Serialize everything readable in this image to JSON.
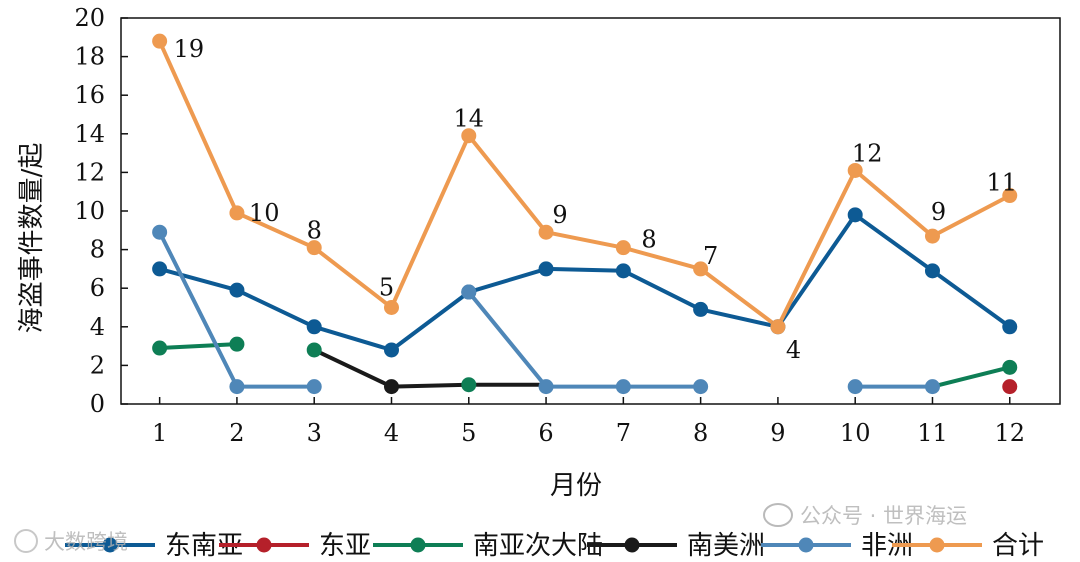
{
  "chart_data": {
    "type": "line",
    "xlabel": "月份",
    "ylabel": "海盗事件数量/起",
    "x": [
      1,
      2,
      3,
      4,
      5,
      6,
      7,
      8,
      9,
      10,
      11,
      12
    ],
    "xlim": [
      0.5,
      12.65
    ],
    "ylim": [
      0,
      20
    ],
    "yticks": [
      0,
      2,
      4,
      6,
      8,
      10,
      12,
      14,
      16,
      18,
      20
    ],
    "grid": false,
    "legend_position": "bottom",
    "series": [
      {
        "name": "东南亚",
        "color": "#0d5a94",
        "values": [
          7,
          5.9,
          4,
          2.8,
          5.8,
          7,
          6.9,
          4.9,
          4,
          9.8,
          6.9,
          4
        ]
      },
      {
        "name": "东亚",
        "color": "#b5202a",
        "values": [
          null,
          null,
          null,
          null,
          null,
          null,
          null,
          null,
          null,
          null,
          null,
          0.9
        ]
      },
      {
        "name": "南亚次大陆",
        "color": "#0e7e55",
        "values": [
          2.9,
          3.1,
          2.8,
          null,
          1,
          null,
          null,
          null,
          null,
          null,
          0.9,
          1.9
        ]
      },
      {
        "name": "南美洲",
        "color": "#1a1a1a",
        "values": [
          null,
          null,
          2.8,
          0.9,
          1,
          1,
          null,
          null,
          null,
          null,
          null,
          null
        ]
      },
      {
        "name": "非洲",
        "color": "#4f87b8",
        "values": [
          8.9,
          0.9,
          0.9,
          null,
          5.8,
          0.9,
          0.9,
          0.9,
          null,
          0.9,
          0.9,
          null
        ]
      },
      {
        "name": "合计",
        "color": "#ee9a50",
        "values": [
          18.8,
          9.9,
          8.1,
          5,
          13.9,
          8.9,
          8.1,
          7,
          4,
          12.1,
          8.7,
          10.8
        ],
        "labels": [
          "19",
          "10",
          "8",
          "5",
          "14",
          "9",
          "8",
          "7",
          "4",
          "12",
          "9",
          "11"
        ]
      }
    ],
    "segments": {
      "非洲": [
        [
          1,
          2
        ],
        [
          2,
          3
        ],
        [
          5,
          6
        ],
        [
          6,
          7
        ],
        [
          7,
          8
        ],
        [
          10,
          11
        ]
      ],
      "南亚次大陆": [
        [
          1,
          2
        ],
        [
          11,
          12
        ]
      ],
      "南美洲": [
        [
          2,
          3
        ],
        [
          3,
          4
        ],
        [
          4,
          5
        ],
        [
          5,
          6
        ]
      ]
    },
    "marker_points": {
      "南亚次大陆": [
        1,
        2,
        3,
        5,
        12
      ],
      "南美洲": [
        4
      ],
      "非洲": [
        1,
        2,
        3,
        5,
        6,
        7,
        8,
        10,
        11
      ]
    }
  },
  "watermarks": {
    "left": "大数跨境",
    "right": "公众号 · 世界海运"
  }
}
